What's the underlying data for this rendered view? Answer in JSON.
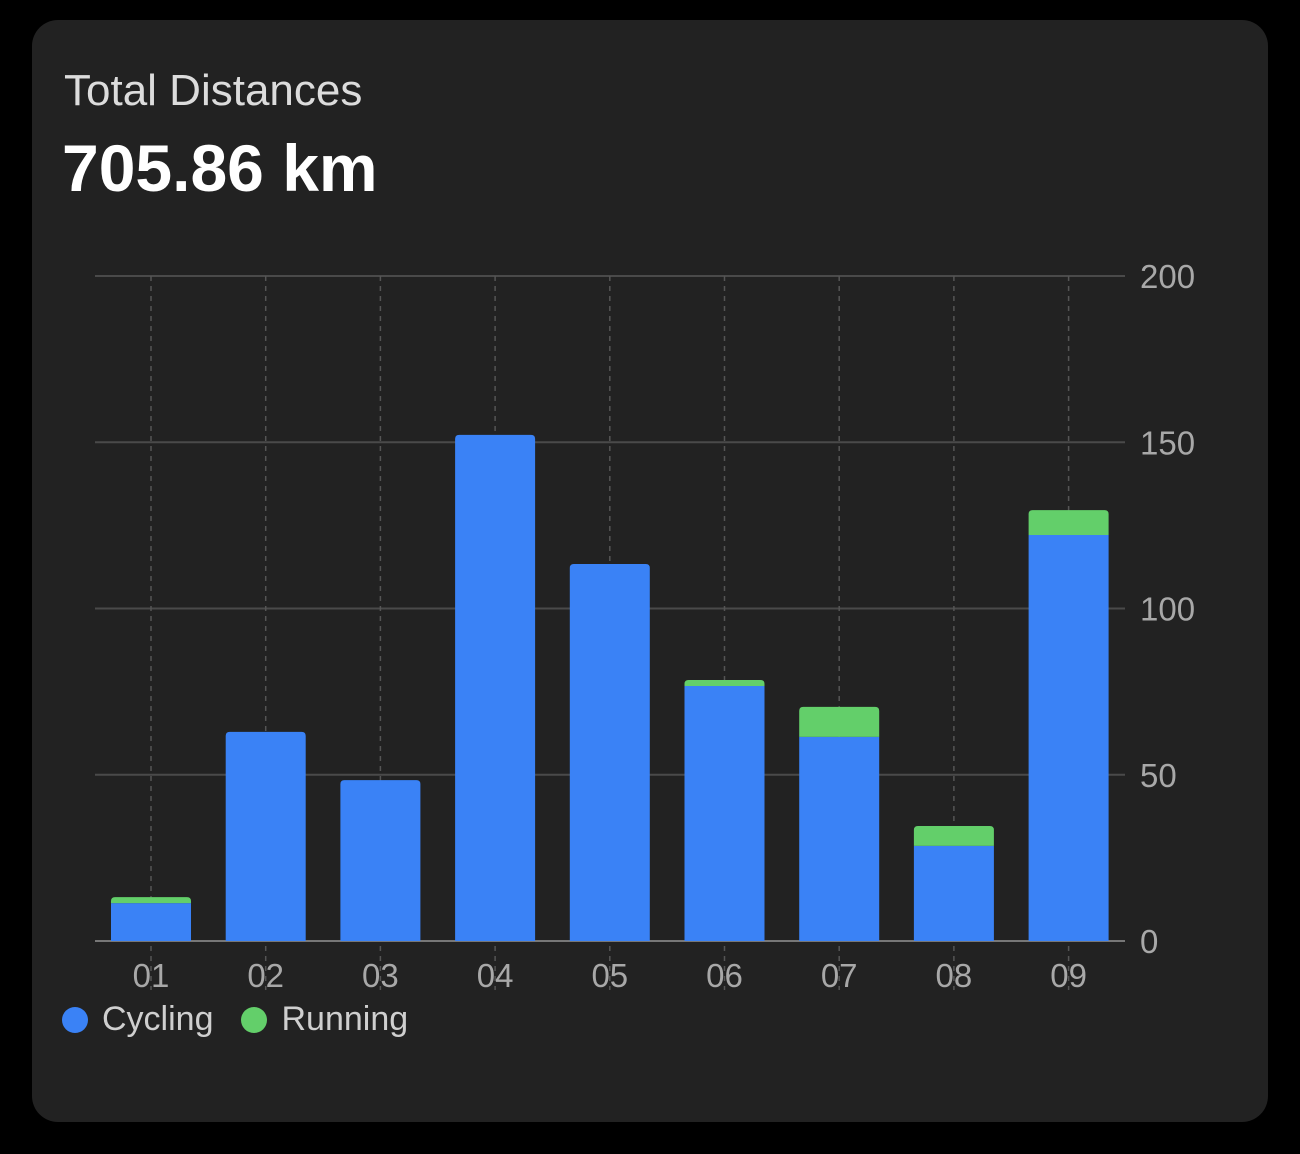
{
  "header": {
    "title": "Total Distances",
    "total": "705.86 km"
  },
  "chart_data": {
    "type": "bar",
    "stacked": true,
    "categories": [
      "01",
      "02",
      "03",
      "04",
      "05",
      "06",
      "07",
      "08",
      "09"
    ],
    "series": [
      {
        "name": "Cycling",
        "color": "#3a82f6",
        "values": [
          11.4,
          62.9,
          48.4,
          152.2,
          113.4,
          76.7,
          61.4,
          28.6,
          122.1
        ]
      },
      {
        "name": "Running",
        "color": "#63cf6a",
        "values": [
          1.8,
          0,
          0,
          0,
          0,
          1.8,
          9.0,
          6.0,
          7.5
        ]
      }
    ],
    "ylim": [
      0,
      200
    ],
    "yticks": [
      "0",
      "50",
      "100",
      "150",
      "200"
    ],
    "ytick_values": [
      0,
      50,
      100,
      150,
      200
    ],
    "y_axis_position": "right",
    "grid": true,
    "legend_position": "bottom-left"
  }
}
